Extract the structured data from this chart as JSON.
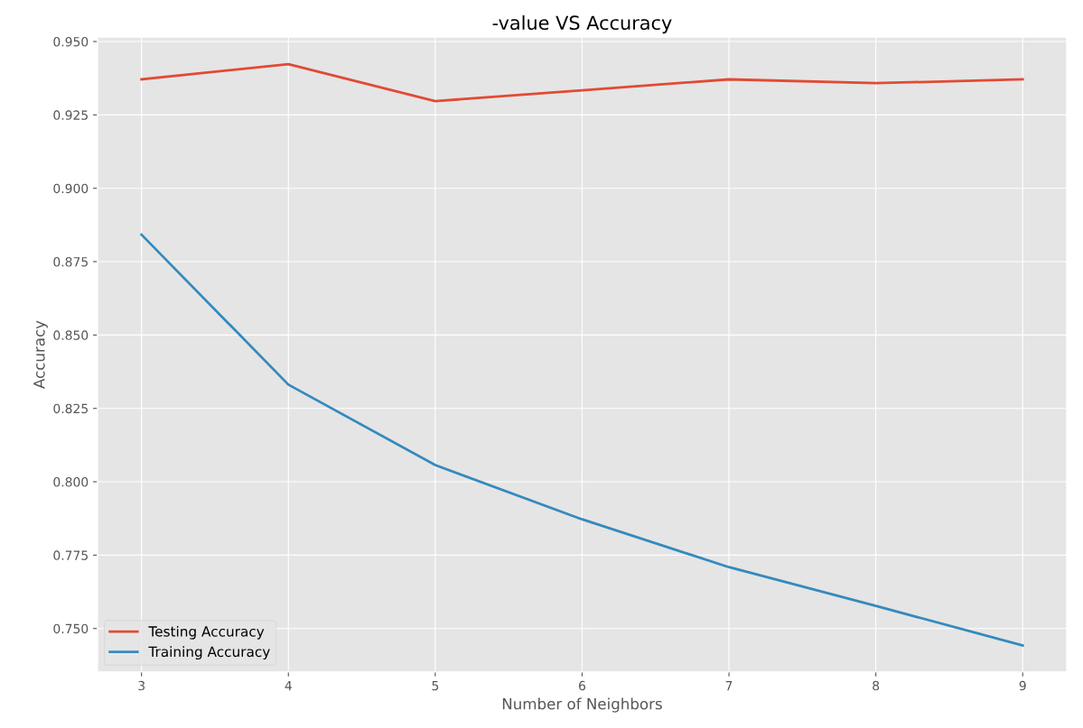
{
  "chart_data": {
    "type": "line",
    "title": "-value VS Accuracy",
    "xlabel": "Number of Neighbors",
    "ylabel": "Accuracy",
    "x": [
      3,
      4,
      5,
      6,
      7,
      8,
      9
    ],
    "series": [
      {
        "name": "Testing Accuracy",
        "color": "#e24a33",
        "values": [
          0.9371,
          0.9423,
          0.9297,
          0.9334,
          0.9371,
          0.9358,
          0.9371
        ]
      },
      {
        "name": "Training Accuracy",
        "color": "#348abd",
        "values": [
          0.8842,
          0.8331,
          0.8057,
          0.7872,
          0.7709,
          0.7577,
          0.7442
        ]
      }
    ],
    "xlim": [
      2.7,
      9.3
    ],
    "ylim": [
      0.7352,
      0.9515
    ],
    "xticks": [
      3,
      4,
      5,
      6,
      7,
      8,
      9
    ],
    "yticks": [
      {
        "value": 0.75,
        "label": "0.750"
      },
      {
        "value": 0.775,
        "label": "0.775"
      },
      {
        "value": 0.8,
        "label": "0.800"
      },
      {
        "value": 0.825,
        "label": "0.825"
      },
      {
        "value": 0.85,
        "label": "0.850"
      },
      {
        "value": 0.875,
        "label": "0.875"
      },
      {
        "value": 0.9,
        "label": "0.900"
      },
      {
        "value": 0.925,
        "label": "0.925"
      },
      {
        "value": 0.95,
        "label": "0.950"
      }
    ],
    "grid": true,
    "legend": "lower left",
    "marker": "none",
    "line_style": "solid"
  }
}
